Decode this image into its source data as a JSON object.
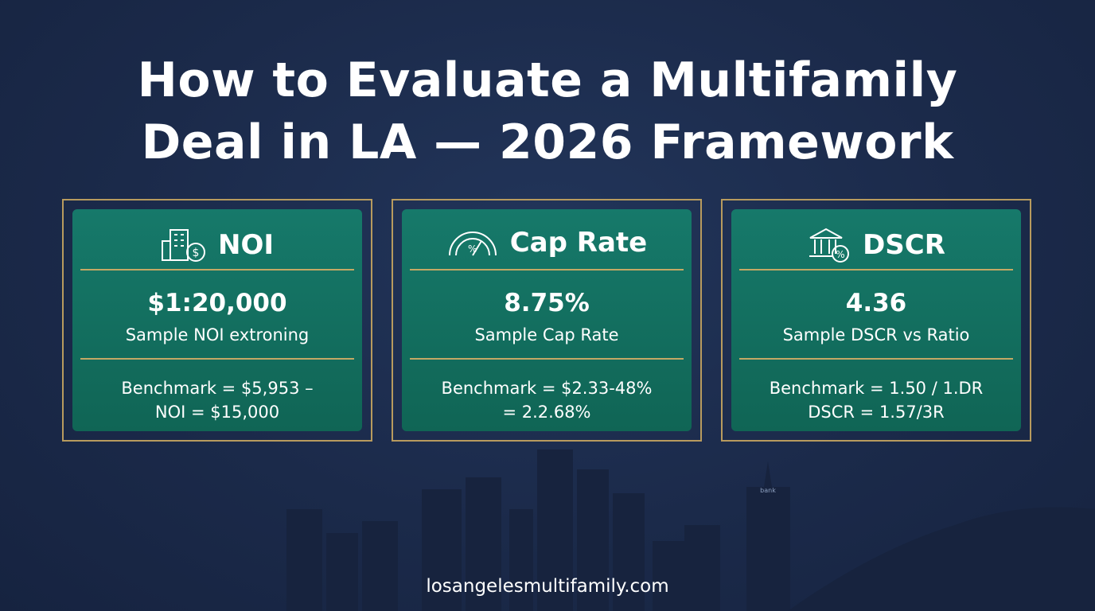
{
  "header": {
    "title_lines": [
      "How to Evaluate a Multifamily",
      "Deal in LA — 2026 Framework"
    ]
  },
  "cards": [
    {
      "heading": "NOI",
      "value": "$1:20,000",
      "caption": "Sample NOI extroning",
      "benchmark_lines": [
        "Benchmark = $5,953 –",
        "NOI = $15,000"
      ]
    },
    {
      "heading": "Cap Rate",
      "value": "8.75%",
      "caption": "Sample Cap Rate",
      "benchmark_lines": [
        "Benchmark = $2.33-48%",
        "= 2.2.68%"
      ]
    },
    {
      "heading": "DSCR",
      "value": "4.36",
      "caption": "Sample DSCR vs Ratio",
      "benchmark_lines": [
        "Benchmark = 1.50 / 1.DR",
        "DSCR = 1.57/3R"
      ]
    }
  ],
  "skyline": {
    "sign": "bank"
  },
  "footer": {
    "url": "losangelesmultifamily.com"
  }
}
